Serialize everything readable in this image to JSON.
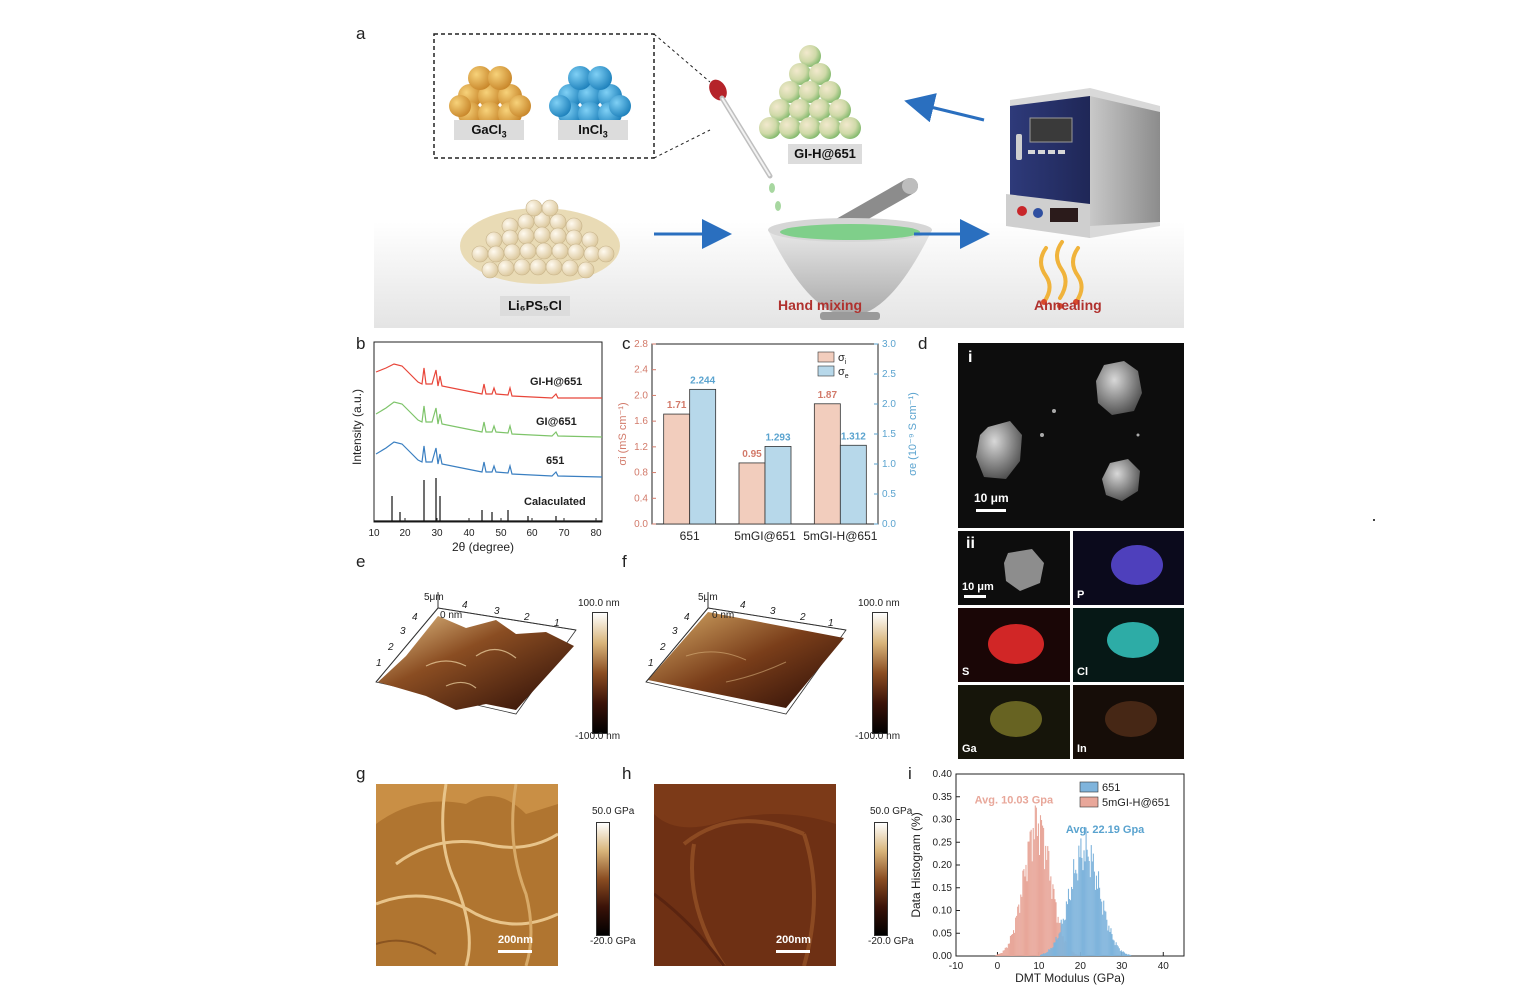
{
  "panels": {
    "a": "a",
    "b": "b",
    "c": "c",
    "d": "d",
    "e": "e",
    "f": "f",
    "g": "g",
    "h": "h",
    "i": "i"
  },
  "schematic": {
    "gacl3": "GaCl",
    "gacl3_sub": "3",
    "incl3": "InCl",
    "incl3_sub": "3",
    "gih651": "GI-H@651",
    "li6ps5cl": "Li₆PS₅Cl",
    "hand_mixing": "Hand mixing",
    "annealing": "Annealing",
    "colors": {
      "gacl3": "#e3a33a",
      "incl3": "#2d9fd6",
      "li6ps5cl": "#f1e4c2",
      "product": "#a7c98c",
      "arrow": "#2a6fbf",
      "red_label": "#b0312e"
    }
  },
  "xrd": {
    "ylabel": "Intensity (a.u.)",
    "xlabel": "2θ (degree)",
    "labels": [
      "GI-H@651",
      "GI@651",
      "651",
      "Calaculated"
    ],
    "colors": [
      "#e8463a",
      "#7ec46a",
      "#3a7fc1",
      "#111111"
    ]
  },
  "sem": {
    "i_label": "i",
    "ii_label": "ii",
    "scale_i": "10 μm",
    "scale_ii": "10 μm",
    "maps": [
      {
        "label": "P",
        "color": "#5a4ad8"
      },
      {
        "label": "S",
        "color": "#e52a2a"
      },
      {
        "label": "Cl",
        "color": "#35c7c0"
      },
      {
        "label": "Ga",
        "color": "#b8b23a"
      },
      {
        "label": "In",
        "color": "#a05a2e"
      }
    ]
  },
  "afm": {
    "e": {
      "top": "100.0 nm",
      "bottom": "-100.0 nm",
      "axis_top": "5μm",
      "origin": "0 nm"
    },
    "f": {
      "top": "100.0 nm",
      "bottom": "-100.0 nm",
      "axis_top": "5μm",
      "origin": "0 nm"
    },
    "ticks_top": [
      "4",
      "3",
      "2",
      "1"
    ],
    "ticks_side": [
      "4",
      "3",
      "2",
      "1"
    ]
  },
  "modulus": {
    "g": {
      "top": "50.0 GPa",
      "bottom": "-20.0 GPa",
      "scale": "200nm"
    },
    "h": {
      "top": "50.0 GPa",
      "bottom": "-20.0 GPa",
      "scale": "200nm"
    }
  },
  "chart_data": [
    {
      "type": "bar",
      "panel": "c",
      "categories": [
        "651",
        "5mGI@651",
        "5mGI-H@651"
      ],
      "series": [
        {
          "name": "σi",
          "axis": "left",
          "color": "#f2cdbd",
          "values": [
            1.71,
            0.95,
            1.87
          ]
        },
        {
          "name": "σe",
          "axis": "right",
          "color": "#b7d8ea",
          "values": [
            2.244,
            1.293,
            1.312
          ]
        }
      ],
      "value_labels": {
        "σi": [
          "1.71",
          "0.95",
          "1.87"
        ],
        "σe": [
          "2.244",
          "1.293",
          "1.312"
        ]
      },
      "legend": [
        "σ",
        "σ"
      ],
      "legend_subs": [
        "i",
        "e"
      ],
      "ylabel_left": "σi (mS cm⁻¹)",
      "ylabel_right": "σe (10⁻⁹ S cm⁻¹)",
      "ylim_left": [
        0,
        2.8
      ],
      "ylim_right": [
        0,
        3.0
      ],
      "yticks_left": [
        "0.0",
        "0.4",
        "0.8",
        "1.2",
        "1.6",
        "2.0",
        "2.4",
        "2.8"
      ],
      "yticks_right": [
        "0.0",
        "0.5",
        "1.0",
        "1.5",
        "2.0",
        "2.5",
        "3.0"
      ],
      "legend_position": "top-right"
    },
    {
      "type": "bar",
      "panel": "i",
      "xlabel": "DMT Modulus (GPa)",
      "ylabel": "Data Histogram (%)",
      "xlim": [
        -10,
        45
      ],
      "ylim": [
        0,
        0.4
      ],
      "xticks": [
        "-10",
        "0",
        "10",
        "20",
        "30",
        "40"
      ],
      "yticks": [
        "0.00",
        "0.05",
        "0.10",
        "0.15",
        "0.20",
        "0.25",
        "0.30",
        "0.35",
        "0.40"
      ],
      "series": [
        {
          "name": "651",
          "color": "#7fb4dc",
          "mean": 22.19,
          "peak": 0.23,
          "avg_label": "Avg. 22.19 Gpa"
        },
        {
          "name": "5mGI-H@651",
          "color": "#e8a79a",
          "mean": 10.03,
          "peak": 0.29,
          "avg_label": "Avg. 10.03 Gpa"
        }
      ],
      "legend_position": "top-right"
    }
  ]
}
